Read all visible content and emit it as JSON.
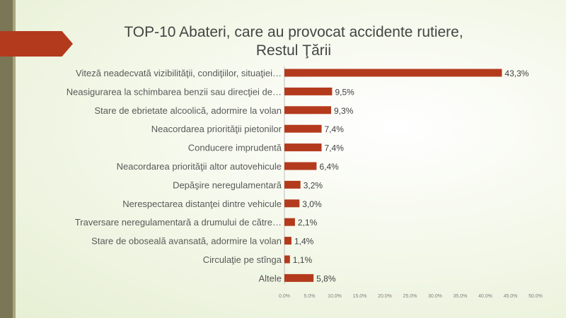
{
  "chart_data": {
    "type": "bar",
    "orientation": "horizontal",
    "title_line1": "TOP-10 Abateri, care au provocat accidente rutiere,",
    "title_line2": "Restul Ţării",
    "categories": [
      "Viteză neadecvată vizibilităţii, condiţiilor, situaţiei…",
      "Neasigurarea la schimbarea benzii sau direcţiei de…",
      "Stare de ebrietate alcoolică, adormire la volan",
      "Neacordarea priorităţii pietonilor",
      "Conducere imprudentă",
      "Neacordarea priorităţii altor autovehicule",
      "Depăşire neregulamentară",
      "Nerespectarea distanţei dintre vehicule",
      "Traversare neregulamentară a drumului de către…",
      "Stare de oboseală avansată, adormire la volan",
      "Circulaţie pe stînga",
      "Altele"
    ],
    "values": [
      43.3,
      9.5,
      9.3,
      7.4,
      7.4,
      6.4,
      3.2,
      3.0,
      2.1,
      1.4,
      1.1,
      5.8
    ],
    "data_labels": [
      "43,3%",
      "9,5%",
      "9,3%",
      "7,4%",
      "7,4%",
      "6,4%",
      "3,2%",
      "3,0%",
      "2,1%",
      "1,4%",
      "1,1%",
      "5,8%"
    ],
    "xlim": [
      0,
      50
    ],
    "x_ticks": [
      "0.0%",
      "5.0%",
      "10.0%",
      "15.0%",
      "20.0%",
      "25.0%",
      "30.0%",
      "35.0%",
      "40.0%",
      "45.0%",
      "50.0%"
    ],
    "grid": false,
    "legend": "none",
    "bar_color": "#b43a1d",
    "accent_color": "#b43a1d",
    "stripe_color": "#7a7656"
  }
}
